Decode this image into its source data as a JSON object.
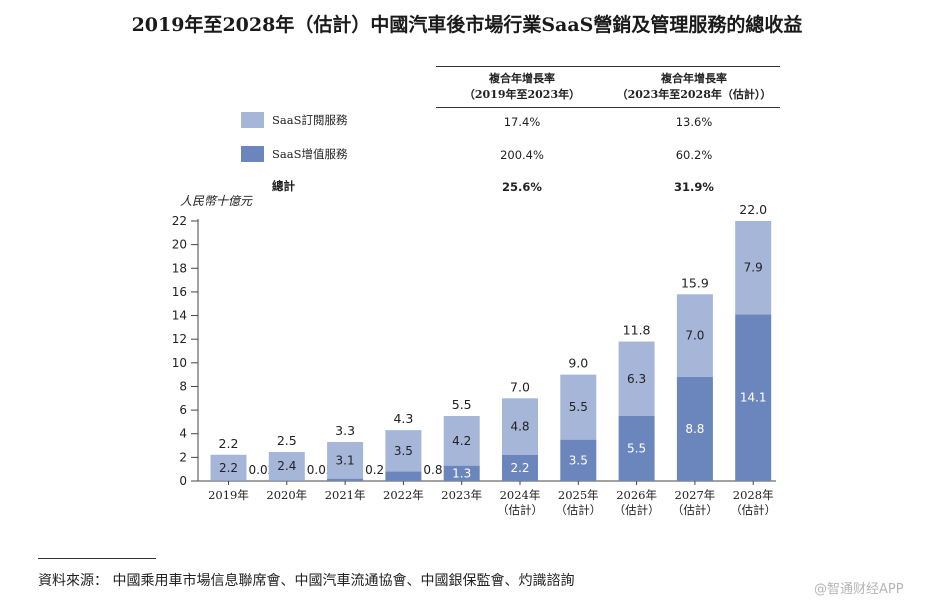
{
  "title": "2019年至2028年（估計）中國汽車後市場行業SaaS營銷及管理服務的總收益",
  "cagr_table": {
    "col1_line1": "複合年增長率",
    "col1_line2": "（2019年至2023年）",
    "col2_line1": "複合年增長率",
    "col2_line2": "（2023年至2028年（估計））",
    "rows": [
      {
        "label": "SaaS訂閱服務",
        "v1": "17.4%",
        "v2": "13.6%",
        "color": "#a6b6d8"
      },
      {
        "label": "SaaS增值服務",
        "v1": "200.4%",
        "v2": "60.2%",
        "color": "#6a86bc"
      },
      {
        "label": "總計",
        "v1": "25.6%",
        "v2": "31.9%"
      }
    ]
  },
  "chart_data": {
    "type": "bar",
    "stacked": true,
    "ylabel": "人民幣十億元",
    "ylim": [
      0,
      22
    ],
    "yticks": [
      0,
      2,
      4,
      6,
      8,
      10,
      12,
      14,
      16,
      18,
      20,
      22
    ],
    "categories": [
      [
        "2019年"
      ],
      [
        "2020年"
      ],
      [
        "2021年"
      ],
      [
        "2022年"
      ],
      [
        "2023年"
      ],
      [
        "2024年",
        "（估計）"
      ],
      [
        "2025年",
        "（估計）"
      ],
      [
        "2026年",
        "（估計）"
      ],
      [
        "2027年",
        "（估計）"
      ],
      [
        "2028年",
        "（估計）"
      ]
    ],
    "series": [
      {
        "name": "SaaS增值服務",
        "color": "#6a86bc",
        "values": [
          0.02,
          0.05,
          0.2,
          0.8,
          1.3,
          2.2,
          3.5,
          5.5,
          8.8,
          14.1
        ],
        "labels": [
          "0.02",
          "0.05",
          "0.2",
          "0.8",
          "1.3",
          "2.2",
          "3.5",
          "5.5",
          "8.8",
          "14.1"
        ]
      },
      {
        "name": "SaaS訂閱服務",
        "color": "#a6b6d8",
        "values": [
          2.2,
          2.4,
          3.1,
          3.5,
          4.2,
          4.8,
          5.5,
          6.3,
          7.0,
          7.9
        ],
        "labels": [
          "2.2",
          "2.4",
          "3.1",
          "3.5",
          "4.2",
          "4.8",
          "5.5",
          "6.3",
          "7.0",
          "7.9"
        ]
      }
    ],
    "totals": [
      2.2,
      2.5,
      3.3,
      4.3,
      5.5,
      7.0,
      9.0,
      11.8,
      15.9,
      22.0
    ],
    "total_labels": [
      "2.2",
      "2.5",
      "3.3",
      "4.3",
      "5.5",
      "7.0",
      "9.0",
      "11.8",
      "15.9",
      "22.0"
    ]
  },
  "source": "資料來源：  中國乘用車市場信息聯席會、中國汽車流通協會、中國銀保監會、灼識諮詢",
  "watermark": "@智通财经APP"
}
